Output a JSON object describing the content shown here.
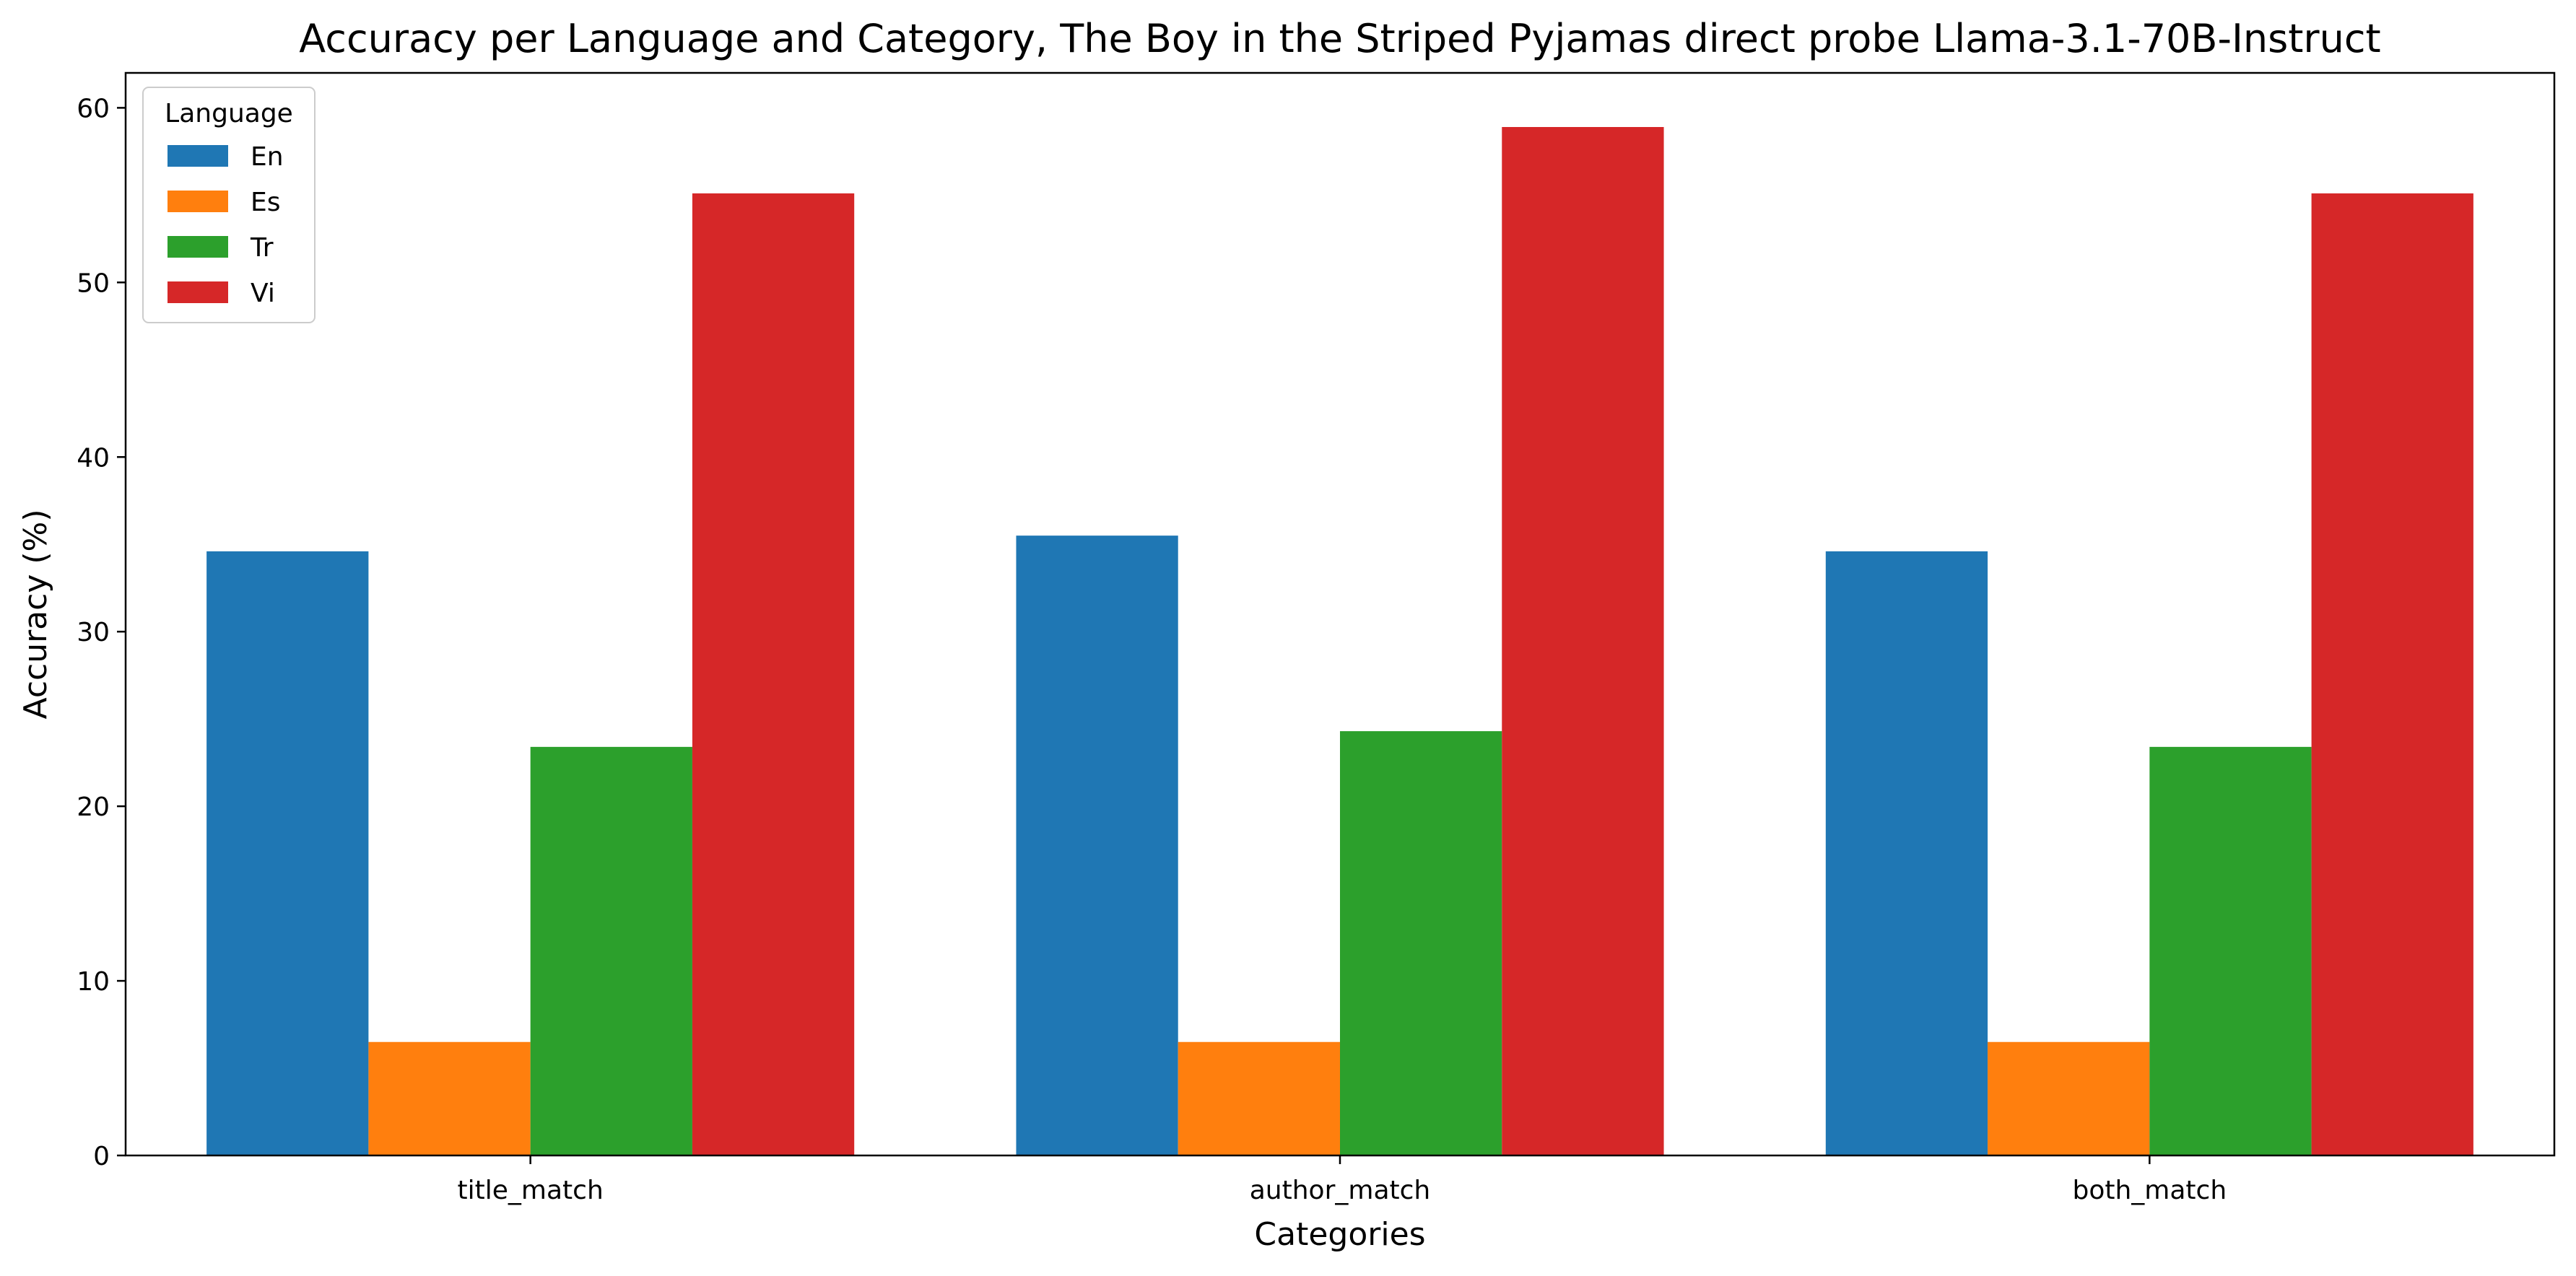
{
  "chart_data": {
    "type": "bar",
    "title": "Accuracy per Language and Category, The Boy in the Striped Pyjamas direct probe Llama-3.1-70B-Instruct",
    "xlabel": "Categories",
    "ylabel": "Accuracy (%)",
    "categories": [
      "title_match",
      "author_match",
      "both_match"
    ],
    "ylim": [
      0,
      62
    ],
    "yticks": [
      0,
      10,
      20,
      30,
      40,
      50,
      60
    ],
    "grid": false,
    "legend": {
      "title": "Language",
      "placement": "top-left"
    },
    "series": [
      {
        "name": "En",
        "color": "#1f77b4",
        "values": [
          34.6,
          35.5,
          34.6
        ]
      },
      {
        "name": "Es",
        "color": "#ff7f0e",
        "values": [
          6.5,
          6.5,
          6.5
        ]
      },
      {
        "name": "Tr",
        "color": "#2ca02c",
        "values": [
          23.4,
          24.3,
          23.4
        ]
      },
      {
        "name": "Vi",
        "color": "#d62728",
        "values": [
          55.1,
          58.9,
          55.1
        ]
      }
    ]
  }
}
